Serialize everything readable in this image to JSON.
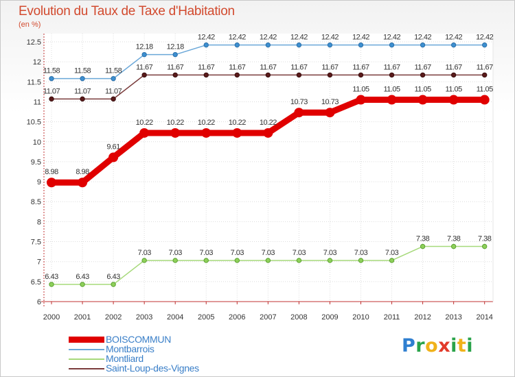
{
  "chart_data": {
    "type": "line",
    "title": "Evolution du Taux de Taxe d'Habitation",
    "unit_label": "(en %)",
    "xlabel": "",
    "ylabel": "(en %)",
    "x": [
      "2000",
      "2001",
      "2002",
      "2003",
      "2004",
      "2005",
      "2006",
      "2007",
      "2008",
      "2009",
      "2010",
      "2011",
      "2012",
      "2013",
      "2014"
    ],
    "ylim": [
      6,
      12.5
    ],
    "yticks": [
      "6",
      "6.5",
      "7",
      "7.5",
      "8",
      "8.5",
      "9",
      "9.5",
      "10",
      "10.5",
      "11",
      "11.5",
      "12",
      "12.5"
    ],
    "grid": true,
    "series": [
      {
        "name": "BOISCOMMUN",
        "color": "#e00000",
        "values": [
          8.98,
          8.98,
          9.61,
          10.22,
          10.22,
          10.22,
          10.22,
          10.22,
          10.73,
          10.73,
          11.05,
          11.05,
          11.05,
          11.05,
          11.05
        ],
        "labels": [
          "8.98",
          "8.98",
          "9.61",
          "10.22",
          "10.22",
          "10.22",
          "10.22",
          "10.22",
          "10.73",
          "10.73",
          "11.05",
          "11.05",
          "11.05",
          "11.05",
          "11.05"
        ]
      },
      {
        "name": "Montbarrois",
        "color": "#6aa7d8",
        "values": [
          11.58,
          11.58,
          11.58,
          12.18,
          12.18,
          12.42,
          12.42,
          12.42,
          12.42,
          12.42,
          12.42,
          12.42,
          12.42,
          12.42,
          12.42
        ],
        "labels": [
          "11.58",
          "11.58",
          "11.58",
          "12.18",
          "12.18",
          "12.42",
          "12.42",
          "12.42",
          "12.42",
          "12.42",
          "12.42",
          "12.42",
          "12.42",
          "12.42",
          "12.42"
        ]
      },
      {
        "name": "Montliard",
        "color": "#a6d97a",
        "values": [
          6.43,
          6.43,
          6.43,
          7.03,
          7.03,
          7.03,
          7.03,
          7.03,
          7.03,
          7.03,
          7.03,
          7.03,
          7.38,
          7.38,
          7.38
        ],
        "labels": [
          "6.43",
          "6.43",
          "6.43",
          "7.03",
          "7.03",
          "7.03",
          "7.03",
          "7.03",
          "7.03",
          "7.03",
          "7.03",
          "7.03",
          "7.38",
          "7.38",
          "7.38"
        ]
      },
      {
        "name": "Saint-Loup-des-Vignes",
        "color": "#7a3b3b",
        "values": [
          11.07,
          11.07,
          11.07,
          11.67,
          11.67,
          11.67,
          11.67,
          11.67,
          11.67,
          11.67,
          11.67,
          11.67,
          11.67,
          11.67,
          11.67
        ],
        "labels": [
          "11.07",
          "11.07",
          "11.07",
          "11.67",
          "11.67",
          "11.67",
          "11.67",
          "11.67",
          "11.67",
          "11.67",
          "11.67",
          "11.67",
          "11.67",
          "11.67",
          "11.67"
        ]
      }
    ],
    "legend_position": "bottom-left"
  },
  "logo": {
    "text": "Proxiti"
  }
}
